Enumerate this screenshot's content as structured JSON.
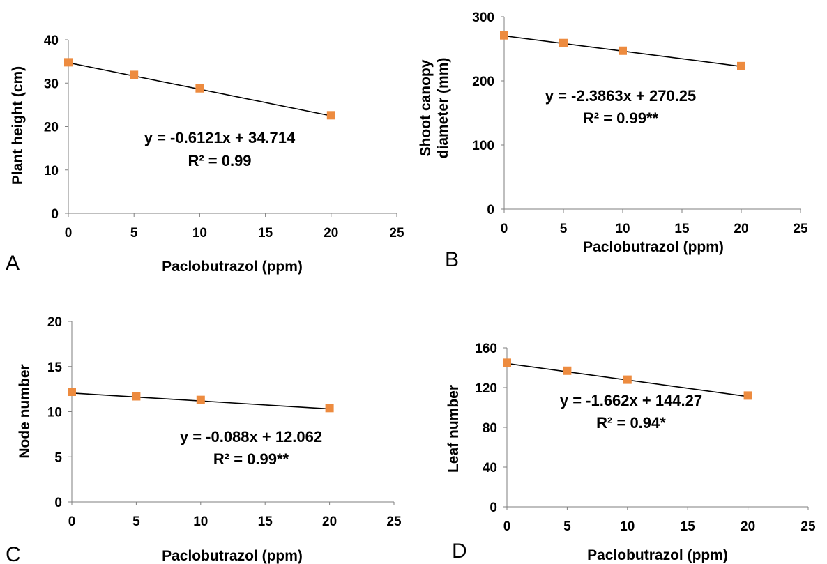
{
  "chart_data": [
    {
      "type": "scatter",
      "panel_label": "A",
      "xlabel": "Paclobutrazol (ppm)",
      "ylabel": "Plant height (cm)",
      "xlim": [
        0,
        25
      ],
      "ylim": [
        0,
        40
      ],
      "xticks": [
        0,
        5,
        10,
        15,
        20,
        25
      ],
      "yticks": [
        0,
        10,
        20,
        30,
        40
      ],
      "x": [
        0,
        5,
        10,
        20
      ],
      "y": [
        34.8,
        31.9,
        28.8,
        22.6
      ],
      "trendline": {
        "slope": -0.6121,
        "intercept": 34.714
      },
      "equation": "y = -0.6121x + 34.714",
      "r2": "R² = 0.99",
      "marker_color": "#ed8b3f",
      "grid": false
    },
    {
      "type": "scatter",
      "panel_label": "B",
      "xlabel": "Paclobutrazol (ppm)",
      "ylabel_lines": [
        "Shoot canopy",
        "diameter (mm)"
      ],
      "xlim": [
        0,
        25
      ],
      "ylim": [
        0,
        300
      ],
      "xticks": [
        0,
        5,
        10,
        15,
        20,
        25
      ],
      "yticks": [
        0,
        100,
        200,
        300
      ],
      "x": [
        0,
        5,
        10,
        20
      ],
      "y": [
        271,
        259,
        247,
        223
      ],
      "trendline": {
        "slope": -2.3863,
        "intercept": 270.25
      },
      "equation": "y = -2.3863x + 270.25",
      "r2": "R² = 0.99**",
      "marker_color": "#ed8b3f",
      "grid": false
    },
    {
      "type": "scatter",
      "panel_label": "C",
      "xlabel": "Paclobutrazol (ppm)",
      "ylabel": "Node number",
      "xlim": [
        0,
        25
      ],
      "ylim": [
        0,
        20
      ],
      "xticks": [
        0,
        5,
        10,
        15,
        20,
        25
      ],
      "yticks": [
        0,
        5,
        10,
        15,
        20
      ],
      "x": [
        0,
        5,
        10,
        20
      ],
      "y": [
        12.2,
        11.7,
        11.3,
        10.4
      ],
      "trendline": {
        "slope": -0.088,
        "intercept": 12.062
      },
      "equation": "y = -0.088x + 12.062",
      "r2": "R² = 0.99**",
      "marker_color": "#ed8b3f",
      "grid": false
    },
    {
      "type": "scatter",
      "panel_label": "D",
      "xlabel": "Paclobutrazol (ppm)",
      "ylabel": "Leaf number",
      "xlim": [
        0,
        25
      ],
      "ylim": [
        0,
        160
      ],
      "xticks": [
        0,
        5,
        10,
        15,
        20,
        25
      ],
      "yticks": [
        0,
        40,
        80,
        120,
        160
      ],
      "x": [
        0,
        5,
        10,
        20
      ],
      "y": [
        145,
        137,
        128,
        112
      ],
      "trendline": {
        "slope": -1.662,
        "intercept": 144.27
      },
      "equation": "y = -1.662x + 144.27",
      "r2": "R² = 0.94*",
      "marker_color": "#ed8b3f",
      "grid": false
    }
  ]
}
